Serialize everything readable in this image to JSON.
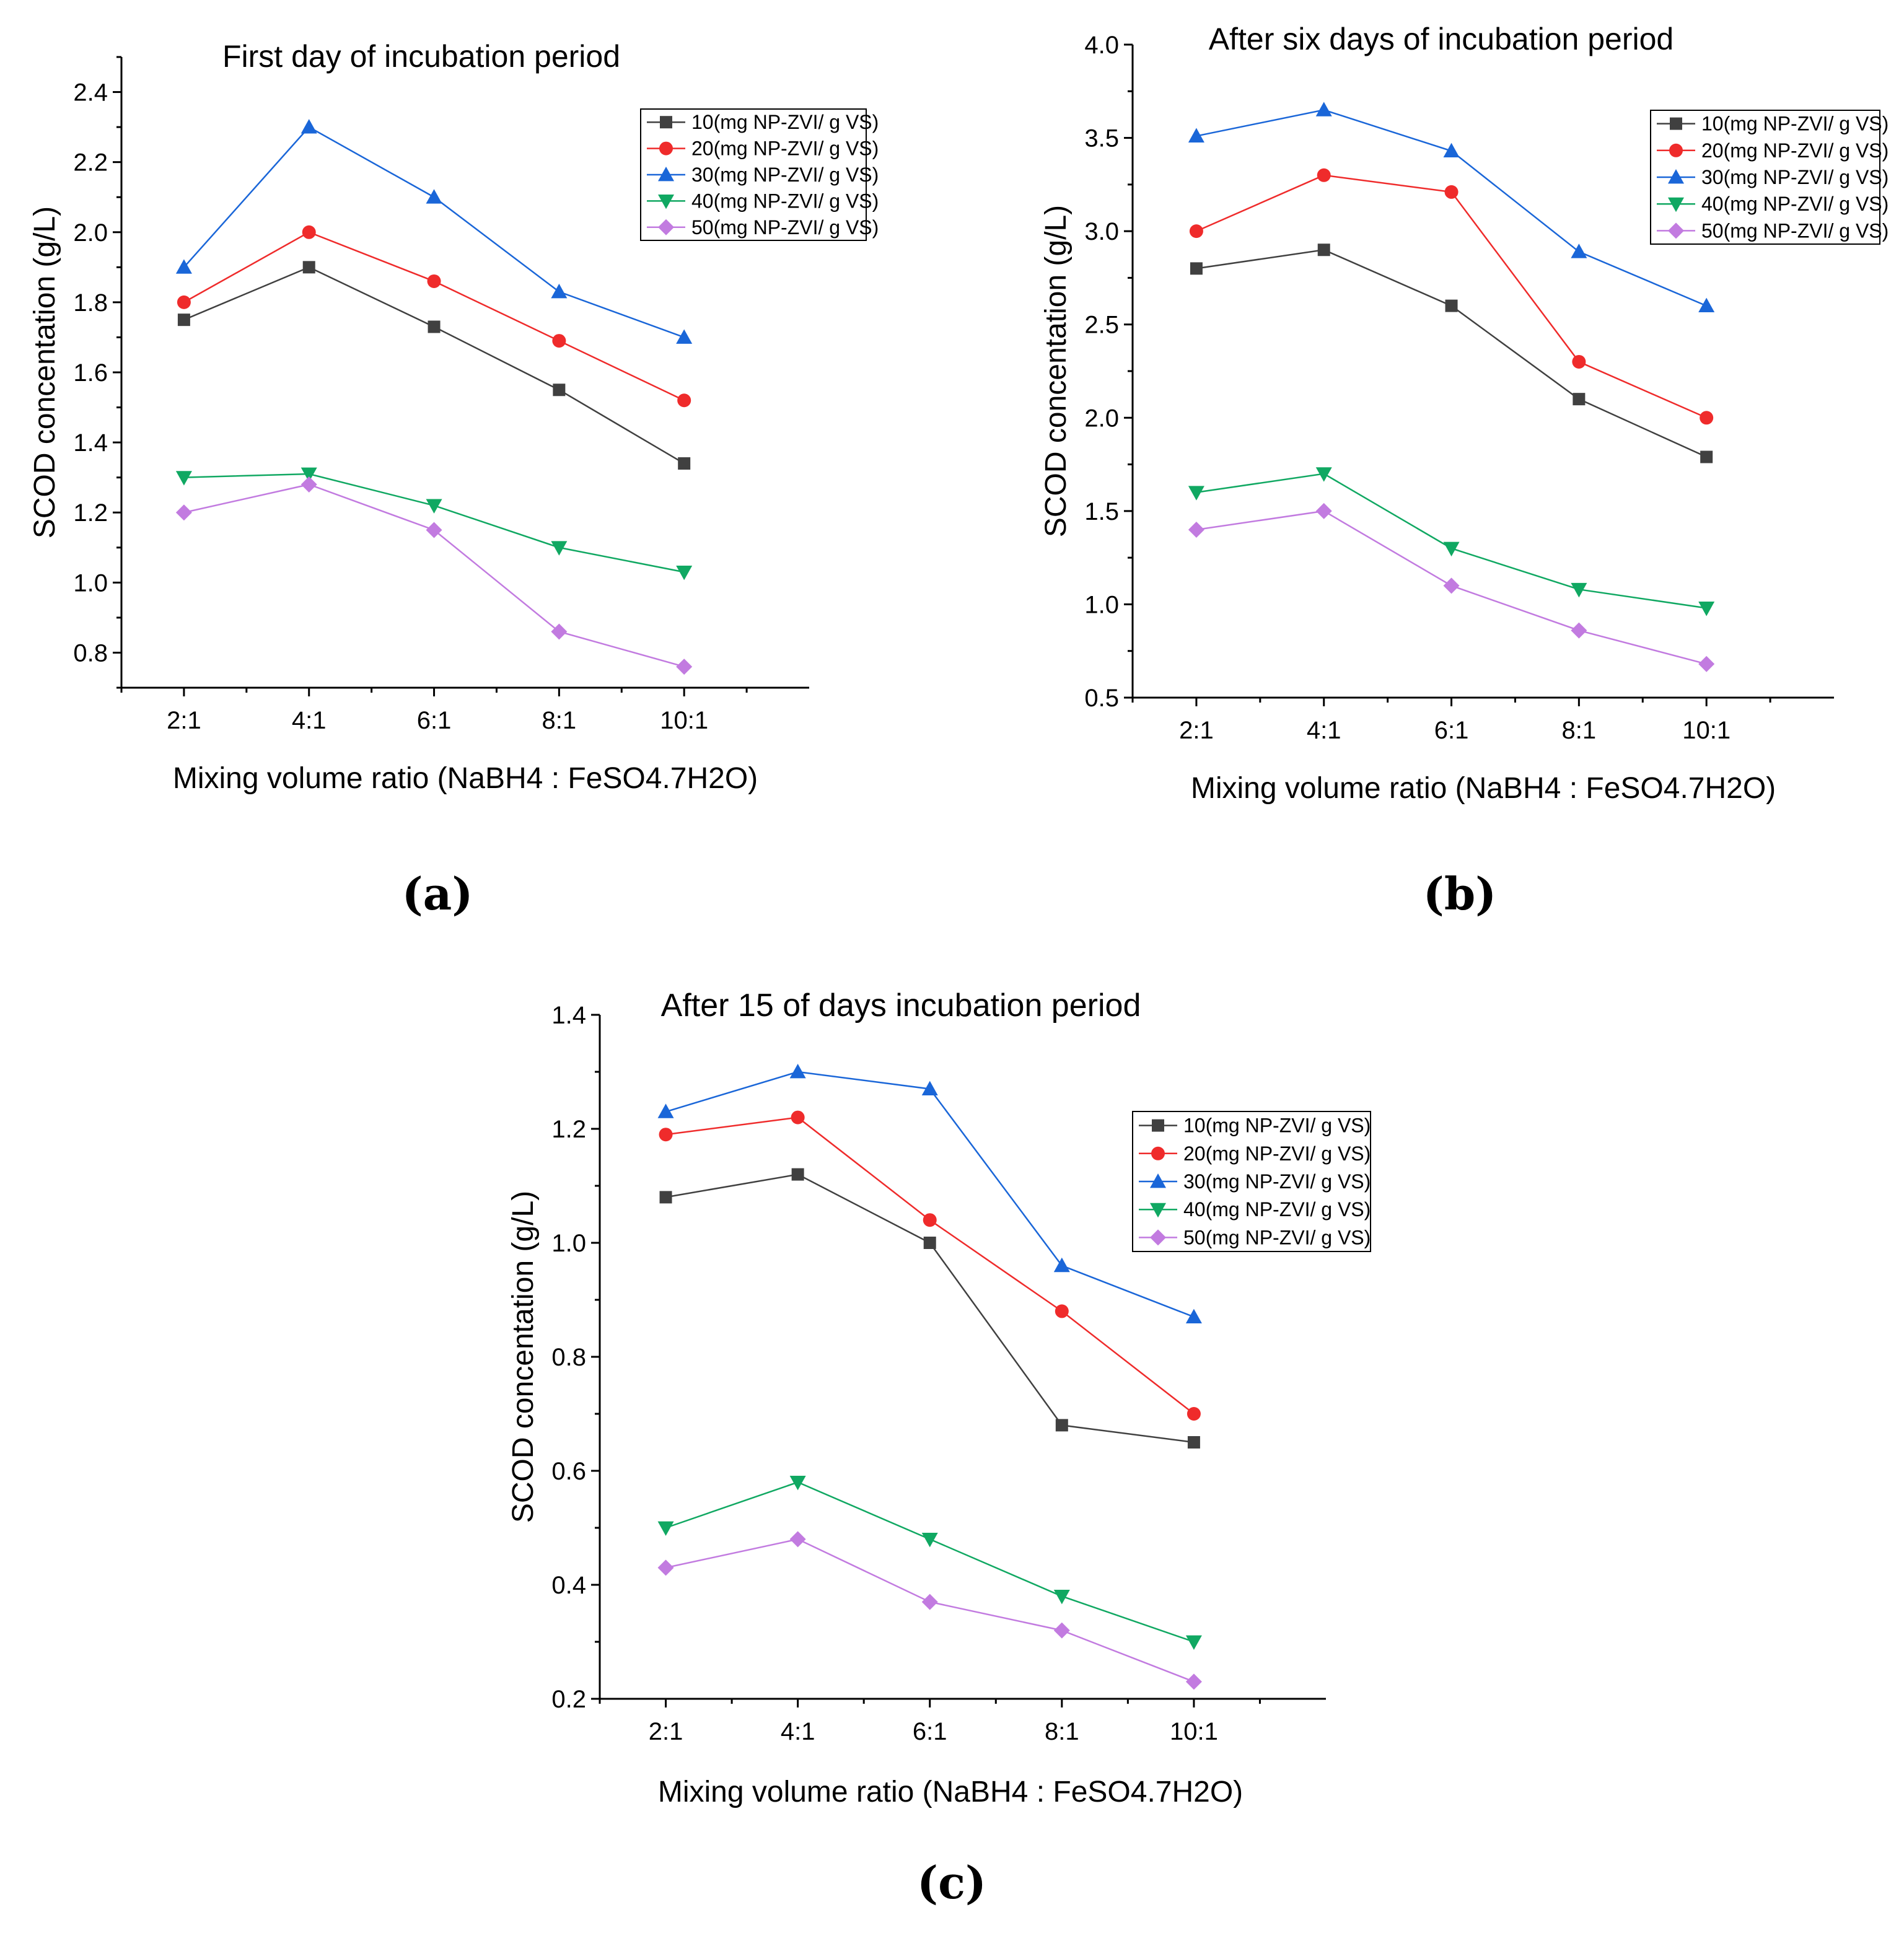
{
  "figure": {
    "panel_labels": [
      "(a)",
      "(b)",
      "(c)"
    ]
  },
  "colors": {
    "10": "#404040",
    "20": "#ef2b2b",
    "30": "#1a66d8",
    "40": "#10a862",
    "50": "#c27be0",
    "axis": "#000000"
  },
  "chart_data": [
    {
      "type": "line",
      "panel": "(a)",
      "title": "First day of incubation period",
      "xlabel": "Mixing volume ratio (NaBH4 : FeSO4.7H2O)",
      "ylabel": "SCOD concentation (g/L)",
      "categories": [
        "2:1",
        "4:1",
        "6:1",
        "8:1",
        "10:1"
      ],
      "ylim": [
        0.7,
        2.5
      ],
      "yticks": [
        0.8,
        1.0,
        1.2,
        1.4,
        1.6,
        1.8,
        2.0,
        2.2,
        2.4
      ],
      "ytick_labels": [
        "0.8",
        "1.0",
        "1.2",
        "1.4",
        "1.6",
        "1.8",
        "2.0",
        "2.2",
        "2.4"
      ],
      "legend_position": "top-right",
      "series": [
        {
          "name": "10(mg NP-ZVI/ g VS)",
          "marker": "square",
          "color_key": "10",
          "values": [
            1.75,
            1.9,
            1.73,
            1.55,
            1.34
          ]
        },
        {
          "name": "20(mg NP-ZVI/ g VS)",
          "marker": "circle",
          "color_key": "20",
          "values": [
            1.8,
            2.0,
            1.86,
            1.69,
            1.52
          ]
        },
        {
          "name": "30(mg NP-ZVI/ g VS)",
          "marker": "triangle-up",
          "color_key": "30",
          "values": [
            1.9,
            2.3,
            2.1,
            1.83,
            1.7
          ]
        },
        {
          "name": "40(mg NP-ZVI/ g VS)",
          "marker": "triangle-down",
          "color_key": "40",
          "values": [
            1.3,
            1.31,
            1.22,
            1.1,
            1.03
          ]
        },
        {
          "name": "50(mg NP-ZVI/ g VS)",
          "marker": "diamond",
          "color_key": "50",
          "values": [
            1.2,
            1.28,
            1.15,
            0.86,
            0.76
          ]
        }
      ]
    },
    {
      "type": "line",
      "panel": "(b)",
      "title": "After six days of incubation period",
      "xlabel": "Mixing volume ratio (NaBH4 : FeSO4.7H2O)",
      "ylabel": "SCOD concentation (g/L)",
      "categories": [
        "2:1",
        "4:1",
        "6:1",
        "8:1",
        "10:1"
      ],
      "ylim": [
        0.5,
        4.0
      ],
      "yticks": [
        0.5,
        1.0,
        1.5,
        2.0,
        2.5,
        3.0,
        3.5,
        4.0
      ],
      "ytick_labels": [
        "0.5",
        "1.0",
        "1.5",
        "2.0",
        "2.5",
        "3.0",
        "3.5",
        "4.0"
      ],
      "legend_position": "top-right",
      "series": [
        {
          "name": "10(mg NP-ZVI/ g VS)",
          "marker": "square",
          "color_key": "10",
          "values": [
            2.8,
            2.9,
            2.6,
            2.1,
            1.79
          ]
        },
        {
          "name": "20(mg NP-ZVI/ g VS)",
          "marker": "circle",
          "color_key": "20",
          "values": [
            3.0,
            3.3,
            3.21,
            2.3,
            2.0
          ]
        },
        {
          "name": "30(mg NP-ZVI/ g VS)",
          "marker": "triangle-up",
          "color_key": "30",
          "values": [
            3.51,
            3.65,
            3.43,
            2.89,
            2.6
          ]
        },
        {
          "name": "40(mg NP-ZVI/ g VS)",
          "marker": "triangle-down",
          "color_key": "40",
          "values": [
            1.6,
            1.7,
            1.3,
            1.08,
            0.98
          ]
        },
        {
          "name": "50(mg NP-ZVI/ g VS)",
          "marker": "diamond",
          "color_key": "50",
          "values": [
            1.4,
            1.5,
            1.1,
            0.86,
            0.68
          ]
        }
      ]
    },
    {
      "type": "line",
      "panel": "(c)",
      "title": "After 15 of days incubation period",
      "xlabel": "Mixing volume ratio (NaBH4 : FeSO4.7H2O)",
      "ylabel": "SCOD concentation (g/L)",
      "categories": [
        "2:1",
        "4:1",
        "6:1",
        "8:1",
        "10:1"
      ],
      "ylim": [
        0.2,
        1.4
      ],
      "yticks": [
        0.2,
        0.4,
        0.6,
        0.8,
        1.0,
        1.2,
        1.4
      ],
      "ytick_labels": [
        "0.2",
        "0.4",
        "0.6",
        "0.8",
        "1.0",
        "1.2",
        "1.4"
      ],
      "legend_position": "top-right",
      "series": [
        {
          "name": "10(mg NP-ZVI/ g VS)",
          "marker": "square",
          "color_key": "10",
          "values": [
            1.08,
            1.12,
            1.0,
            0.68,
            0.65
          ]
        },
        {
          "name": "20(mg NP-ZVI/ g VS)",
          "marker": "circle",
          "color_key": "20",
          "values": [
            1.19,
            1.22,
            1.04,
            0.88,
            0.7
          ]
        },
        {
          "name": "30(mg NP-ZVI/ g VS)",
          "marker": "triangle-up",
          "color_key": "30",
          "values": [
            1.23,
            1.3,
            1.27,
            0.96,
            0.87
          ]
        },
        {
          "name": "40(mg NP-ZVI/ g VS)",
          "marker": "triangle-down",
          "color_key": "40",
          "values": [
            0.5,
            0.58,
            0.48,
            0.38,
            0.3
          ]
        },
        {
          "name": "50(mg NP-ZVI/ g VS)",
          "marker": "diamond",
          "color_key": "50",
          "values": [
            0.43,
            0.48,
            0.37,
            0.32,
            0.23
          ]
        }
      ]
    }
  ]
}
